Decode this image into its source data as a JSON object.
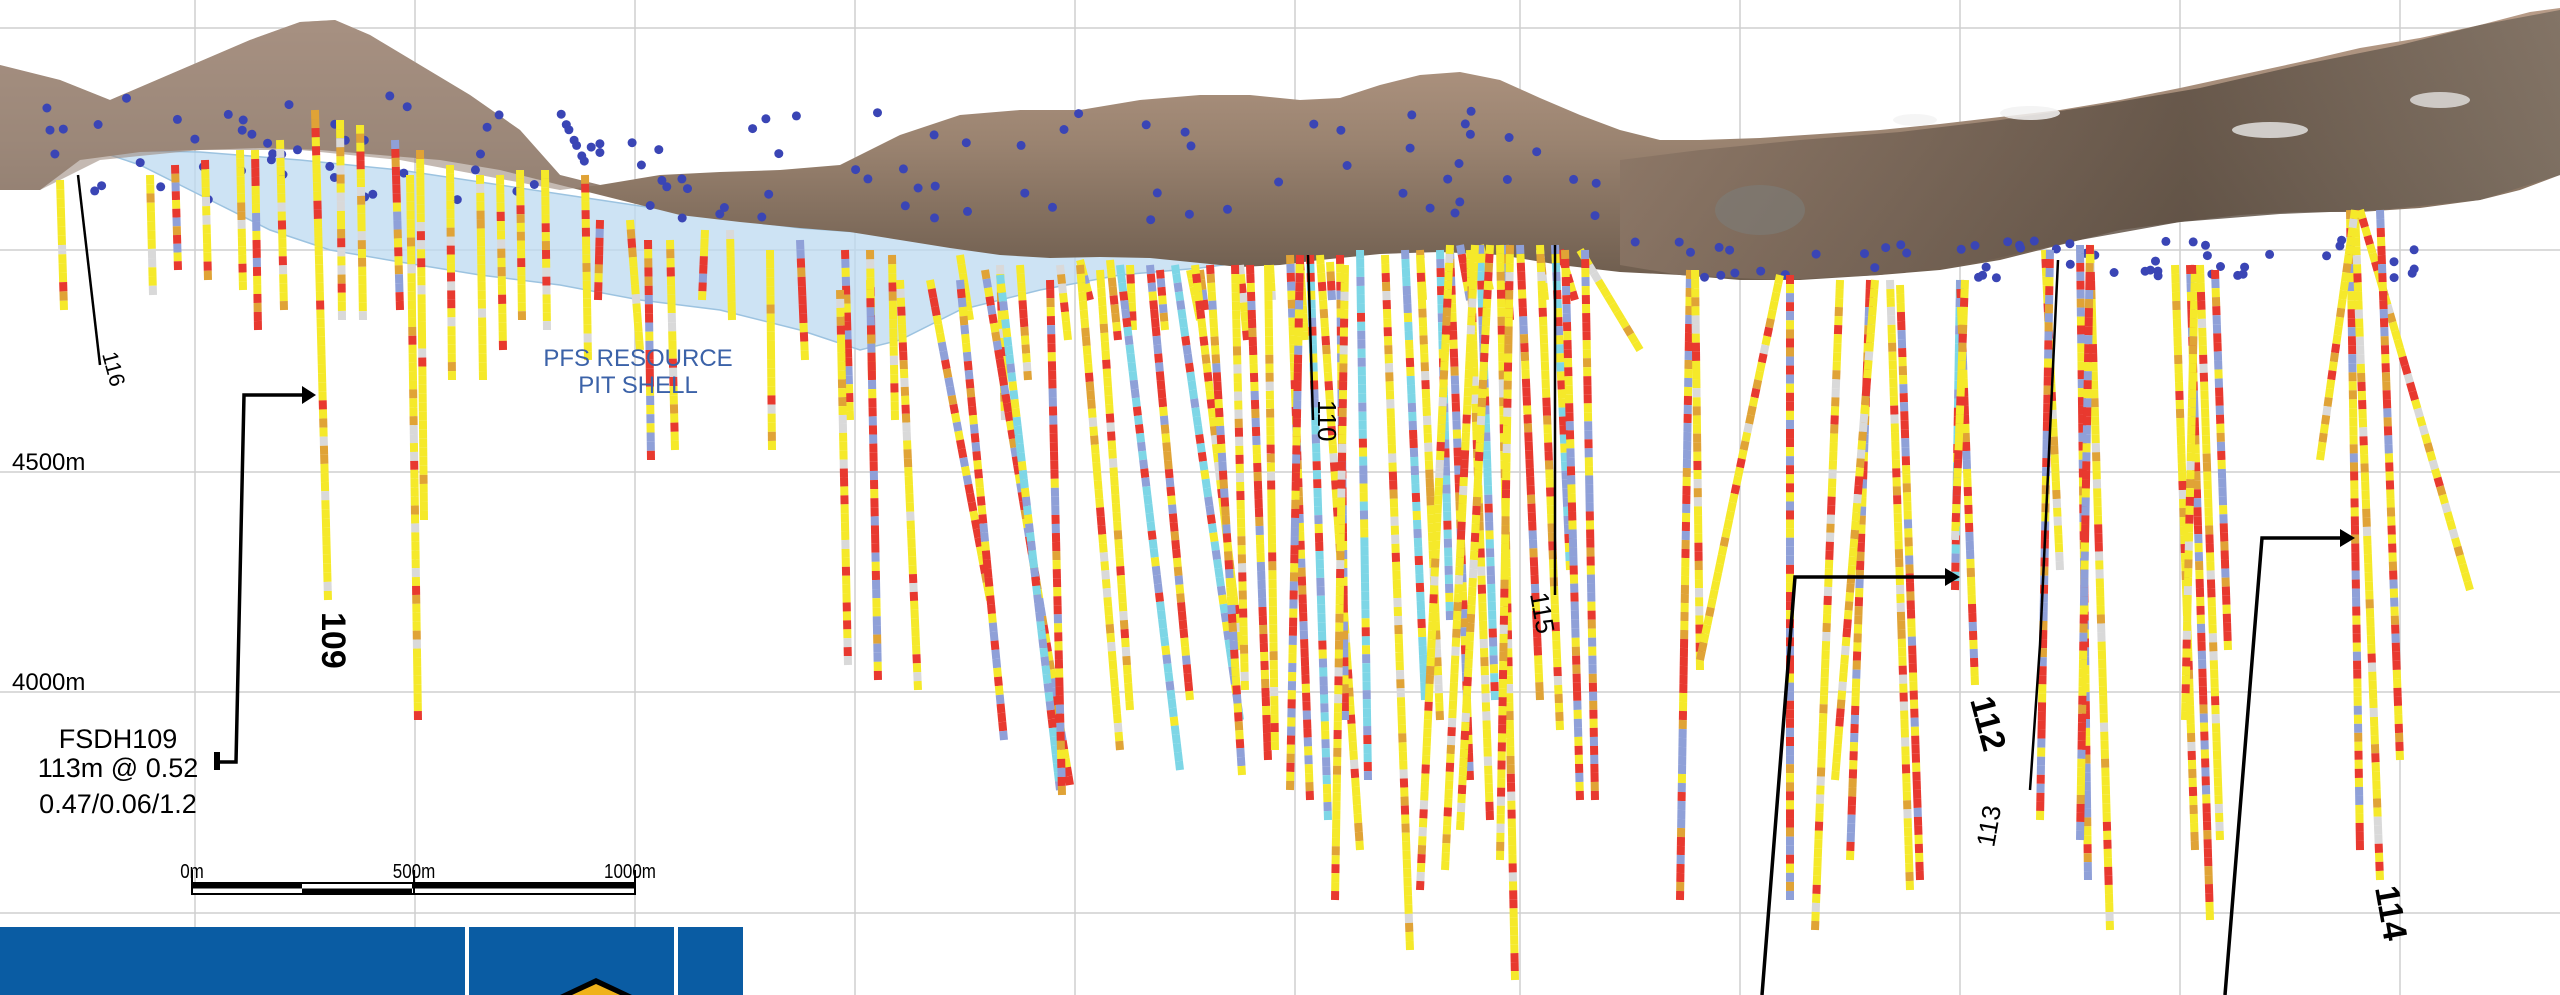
{
  "section": {
    "elevation_labels": [
      "4500m",
      "4000m"
    ],
    "pit_shell_label": [
      "PFS RESOURCE",
      "PIT SHELL"
    ],
    "pit_shell_color": "#3b62a8",
    "hole_labels": {
      "h109": "109",
      "h110": "110",
      "h112": "112",
      "h113": "113",
      "h114": "114",
      "h115": "115",
      "h116": "116"
    },
    "callout": {
      "hole": "FSDH109",
      "interval": "113m @ 0.52",
      "grades": "0.47/0.06/1.2"
    },
    "scale_bar": {
      "ticks": [
        "0m",
        "500m",
        "1000m"
      ]
    },
    "grade_colors": [
      "#f5e92a",
      "#e8392f",
      "#8fa0d8",
      "#7dd6e6",
      "#e0a336",
      "#d9d9d9"
    ],
    "terrain_colors": [
      "#a98f7c",
      "#6b5a4c",
      "#c9a893",
      "#8a7a6a"
    ],
    "logo_color": "#0a5ca3"
  }
}
